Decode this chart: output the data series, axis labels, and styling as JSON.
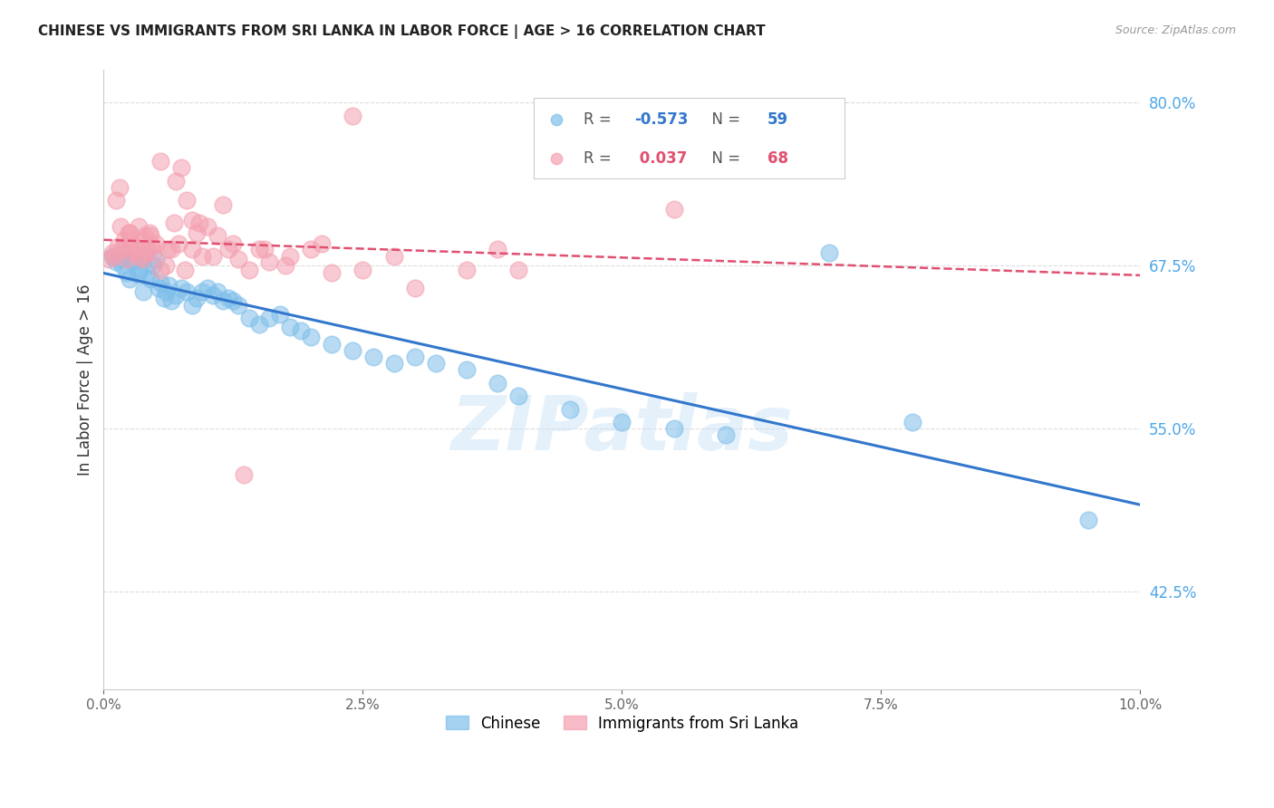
{
  "title": "CHINESE VS IMMIGRANTS FROM SRI LANKA IN LABOR FORCE | AGE > 16 CORRELATION CHART",
  "source": "Source: ZipAtlas.com",
  "ylabel": "In Labor Force | Age > 16",
  "xlim": [
    0.0,
    10.0
  ],
  "ylim": [
    35.0,
    82.5
  ],
  "yticks": [
    42.5,
    55.0,
    67.5,
    80.0
  ],
  "xticks": [
    0.0,
    2.5,
    5.0,
    7.5,
    10.0
  ],
  "legend_blue_R": "-0.573",
  "legend_blue_N": "59",
  "legend_pink_R": "0.037",
  "legend_pink_N": "68",
  "legend_blue_label": "Chinese",
  "legend_pink_label": "Immigrants from Sri Lanka",
  "blue_color": "#7fbfea",
  "pink_color": "#f4a0b0",
  "blue_line_color": "#3377cc",
  "pink_line_color": "#e05070",
  "background_color": "#ffffff",
  "grid_color": "#dddddd",
  "watermark_text": "ZIPatlas",
  "blue_scatter_x": [
    0.08,
    0.12,
    0.15,
    0.18,
    0.2,
    0.22,
    0.25,
    0.28,
    0.3,
    0.33,
    0.35,
    0.38,
    0.4,
    0.42,
    0.45,
    0.48,
    0.5,
    0.53,
    0.55,
    0.58,
    0.6,
    0.63,
    0.65,
    0.7,
    0.75,
    0.8,
    0.85,
    0.9,
    0.95,
    1.0,
    1.05,
    1.1,
    1.15,
    1.2,
    1.25,
    1.3,
    1.4,
    1.5,
    1.6,
    1.7,
    1.8,
    1.9,
    2.0,
    2.2,
    2.4,
    2.6,
    2.8,
    3.0,
    3.2,
    3.5,
    3.8,
    4.0,
    4.5,
    5.0,
    5.5,
    6.0,
    7.0,
    7.8,
    9.5
  ],
  "blue_scatter_y": [
    68.2,
    67.8,
    68.0,
    67.5,
    68.5,
    67.0,
    66.5,
    67.8,
    68.0,
    66.8,
    67.2,
    65.5,
    68.3,
    67.0,
    66.5,
    67.5,
    68.0,
    65.8,
    66.2,
    65.0,
    65.5,
    66.0,
    64.8,
    65.2,
    65.8,
    65.5,
    64.5,
    65.0,
    65.5,
    65.8,
    65.2,
    65.5,
    64.8,
    65.0,
    64.8,
    64.5,
    63.5,
    63.0,
    63.5,
    63.8,
    62.8,
    62.5,
    62.0,
    61.5,
    61.0,
    60.5,
    60.0,
    60.5,
    60.0,
    59.5,
    58.5,
    57.5,
    56.5,
    55.5,
    55.0,
    54.5,
    68.5,
    55.5,
    48.0
  ],
  "pink_scatter_x": [
    0.05,
    0.08,
    0.1,
    0.12,
    0.14,
    0.16,
    0.18,
    0.2,
    0.22,
    0.24,
    0.26,
    0.28,
    0.3,
    0.32,
    0.34,
    0.36,
    0.38,
    0.4,
    0.42,
    0.44,
    0.46,
    0.48,
    0.5,
    0.55,
    0.6,
    0.65,
    0.7,
    0.75,
    0.8,
    0.85,
    0.9,
    0.95,
    1.0,
    1.1,
    1.2,
    1.3,
    1.4,
    1.5,
    1.6,
    1.8,
    2.0,
    2.2,
    2.5,
    2.8,
    3.0,
    3.5,
    3.8,
    4.0,
    0.15,
    0.25,
    0.35,
    0.45,
    0.55,
    0.62,
    0.68,
    0.72,
    0.78,
    0.85,
    0.92,
    1.05,
    1.15,
    1.25,
    1.35,
    1.55,
    1.75,
    2.1,
    2.4,
    5.5
  ],
  "pink_scatter_y": [
    68.0,
    68.5,
    68.2,
    72.5,
    69.0,
    70.5,
    68.8,
    69.5,
    68.0,
    70.0,
    69.5,
    68.5,
    69.0,
    68.8,
    70.5,
    69.5,
    68.0,
    69.8,
    68.5,
    70.0,
    69.0,
    68.5,
    69.2,
    75.5,
    67.5,
    68.8,
    74.0,
    75.0,
    72.5,
    71.0,
    70.0,
    68.2,
    70.5,
    69.8,
    68.8,
    68.0,
    67.2,
    68.8,
    67.8,
    68.2,
    68.8,
    67.0,
    67.2,
    68.2,
    65.8,
    67.2,
    68.8,
    67.2,
    73.5,
    70.0,
    68.2,
    69.8,
    67.2,
    68.8,
    70.8,
    69.2,
    67.2,
    68.8,
    70.8,
    68.2,
    72.2,
    69.2,
    51.5,
    68.8,
    67.5,
    69.2,
    79.0,
    71.8
  ]
}
